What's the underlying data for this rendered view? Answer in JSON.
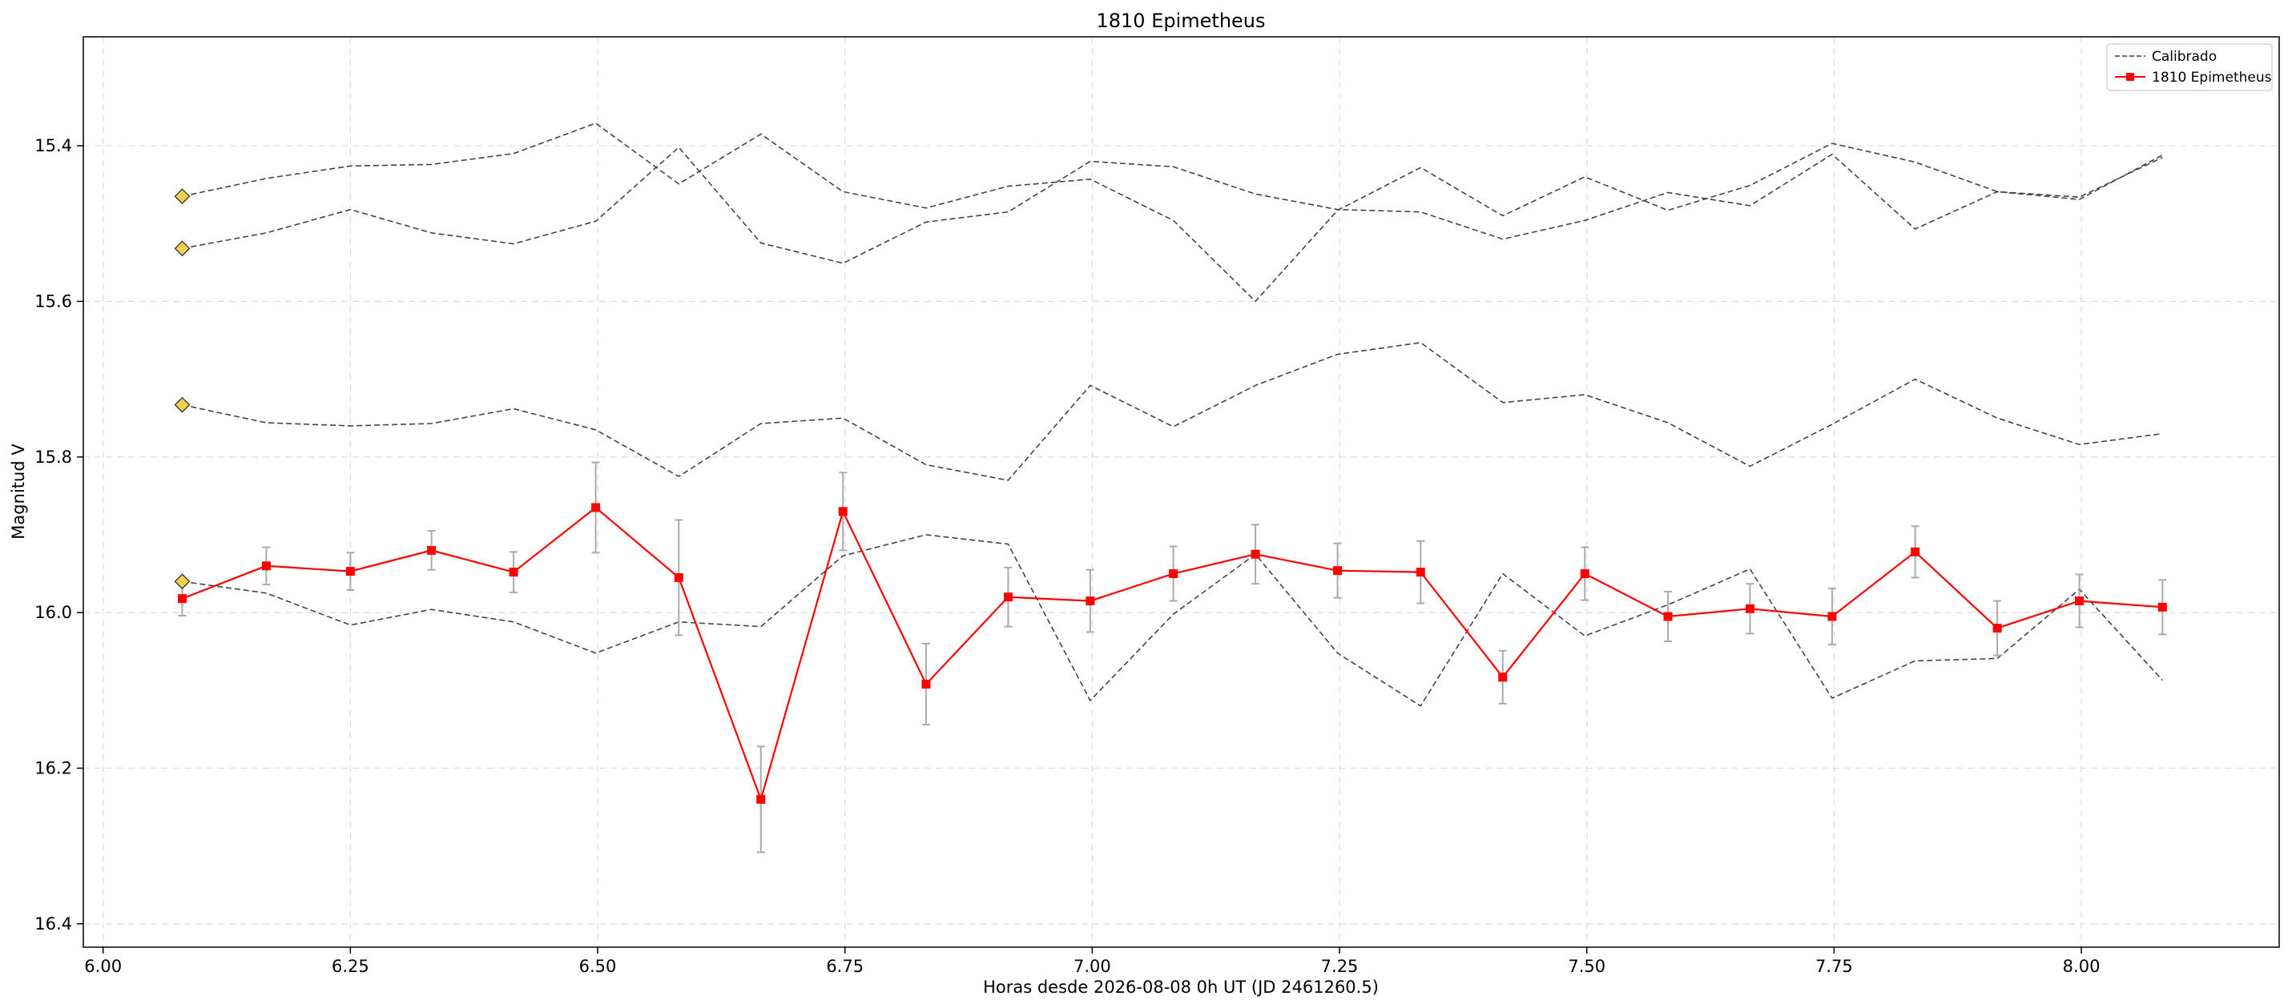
{
  "chart_data": {
    "type": "line",
    "title": "1810 Epimetheus",
    "xlabel": "Horas desde 2026-08-08 0h UT (JD 2461260.5)",
    "ylabel": "Magnitud V",
    "xlim": [
      5.98,
      8.2
    ],
    "ylim": [
      16.43,
      15.26
    ],
    "y_inverted": true,
    "grid": true,
    "legend_position": "top-right",
    "x_ticks": [
      "6.00",
      "6.25",
      "6.50",
      "6.75",
      "7.00",
      "7.25",
      "7.50",
      "7.75",
      "8.00"
    ],
    "y_ticks": [
      "15.4",
      "15.6",
      "15.8",
      "16.0",
      "16.2",
      "16.4"
    ],
    "x": [
      6.08,
      6.165,
      6.25,
      6.332,
      6.415,
      6.498,
      6.582,
      6.665,
      6.748,
      6.832,
      6.915,
      6.998,
      7.082,
      7.165,
      7.248,
      7.332,
      7.415,
      7.498,
      7.582,
      7.665,
      7.748,
      7.832,
      7.915,
      7.998,
      8.082
    ],
    "series": [
      {
        "name": "Calibrado",
        "style": "dashed",
        "color": "#444444",
        "legend": true,
        "values": [
          15.465,
          15.442,
          15.426,
          15.424,
          15.41,
          15.371,
          15.449,
          15.385,
          15.459,
          15.48,
          15.452,
          15.443,
          15.496,
          15.6,
          15.483,
          15.428,
          15.49,
          15.44,
          15.483,
          15.451,
          15.397,
          15.421,
          15.459,
          15.469,
          15.412
        ]
      },
      {
        "name": "",
        "style": "dashed",
        "color": "#444444",
        "legend": false,
        "values": [
          15.532,
          15.512,
          15.482,
          15.512,
          15.526,
          15.497,
          15.402,
          15.525,
          15.551,
          15.498,
          15.485,
          15.42,
          15.427,
          15.462,
          15.482,
          15.485,
          15.52,
          15.496,
          15.46,
          15.477,
          15.411,
          15.507,
          15.459,
          15.466,
          15.415
        ]
      },
      {
        "name": "",
        "style": "dashed",
        "color": "#444444",
        "legend": false,
        "values": [
          15.733,
          15.756,
          15.76,
          15.757,
          15.738,
          15.765,
          15.825,
          15.757,
          15.75,
          15.81,
          15.83,
          15.708,
          15.761,
          15.708,
          15.668,
          15.653,
          15.73,
          15.72,
          15.756,
          15.812,
          15.758,
          15.7,
          15.75,
          15.784,
          15.77
        ]
      },
      {
        "name": "",
        "style": "dashed",
        "color": "#444444",
        "legend": false,
        "values": [
          15.96,
          15.975,
          16.016,
          15.996,
          16.012,
          16.052,
          16.012,
          16.018,
          15.927,
          15.9,
          15.912,
          16.113,
          16.002,
          15.925,
          16.052,
          16.12,
          15.95,
          16.03,
          15.99,
          15.944,
          16.11,
          16.062,
          16.059,
          15.97,
          16.087
        ]
      },
      {
        "name": "1810 Epimetheus",
        "style": "solid-markers",
        "color": "#ff0000",
        "legend": true,
        "values": [
          15.982,
          15.94,
          15.947,
          15.92,
          15.948,
          15.865,
          15.955,
          16.24,
          15.87,
          16.092,
          15.98,
          15.985,
          15.95,
          15.925,
          15.946,
          15.948,
          16.083,
          15.95,
          16.005,
          15.995,
          16.005,
          15.922,
          16.02,
          15.985,
          15.993
        ],
        "errors": [
          0.022,
          0.024,
          0.024,
          0.025,
          0.026,
          0.058,
          0.074,
          0.068,
          0.05,
          0.052,
          0.038,
          0.04,
          0.035,
          0.038,
          0.035,
          0.04,
          0.034,
          0.034,
          0.032,
          0.032,
          0.036,
          0.033,
          0.035,
          0.034,
          0.035
        ]
      }
    ],
    "reference_markers": {
      "x": 6.08,
      "values": [
        15.465,
        15.532,
        15.733,
        15.96
      ],
      "color": "#f0d050",
      "shape": "diamond"
    },
    "errorbar_color": "#aaaaaa"
  }
}
